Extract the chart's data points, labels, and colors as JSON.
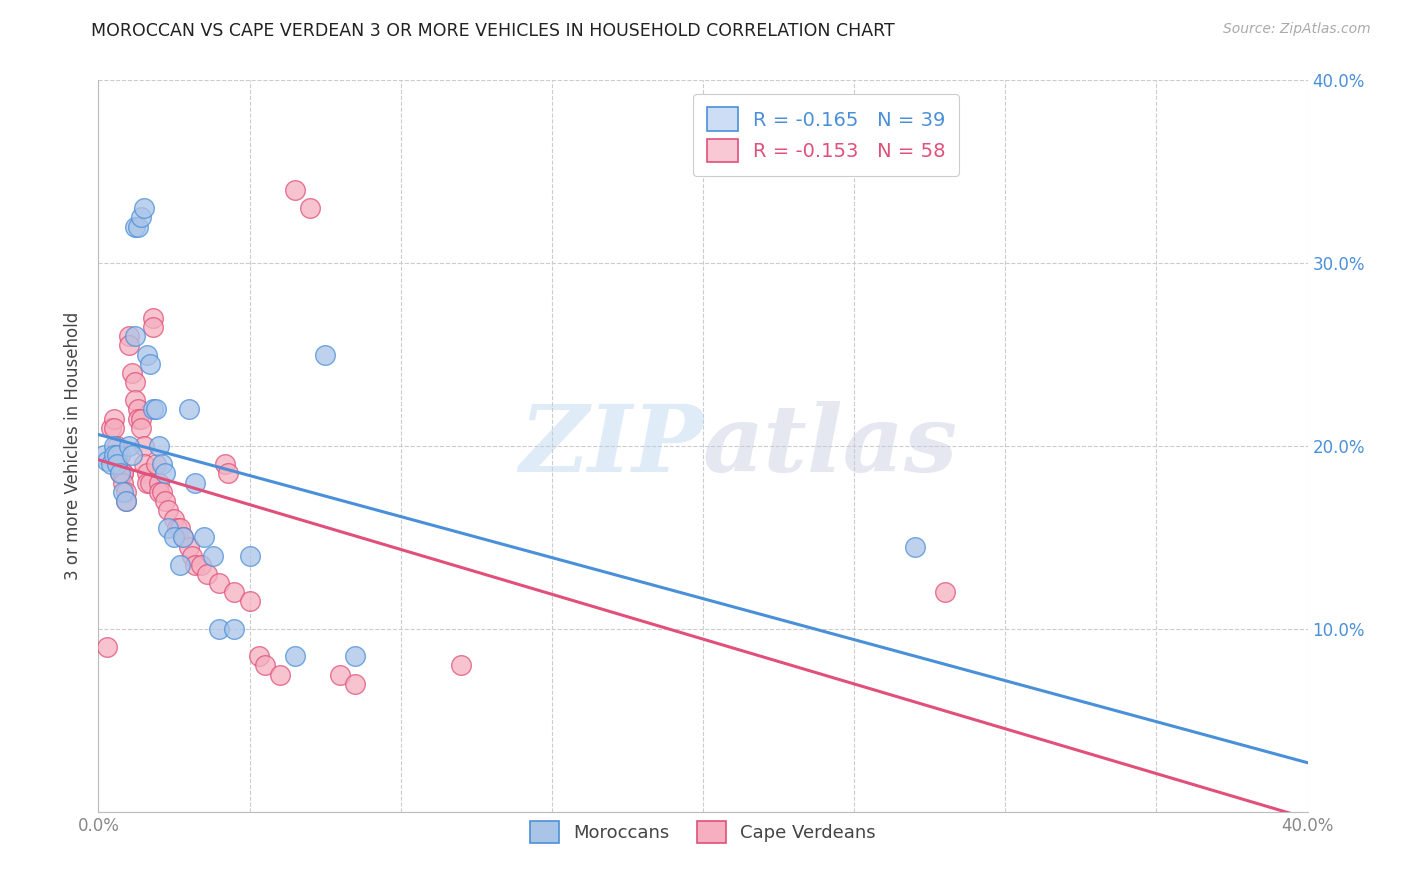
{
  "title": "MOROCCAN VS CAPE VERDEAN 3 OR MORE VEHICLES IN HOUSEHOLD CORRELATION CHART",
  "source": "Source: ZipAtlas.com",
  "ylabel": "3 or more Vehicles in Household",
  "xlim": [
    0.0,
    0.4
  ],
  "ylim": [
    0.0,
    0.4
  ],
  "moroccans_R": -0.165,
  "moroccans_N": 39,
  "cape_verdean_R": -0.153,
  "cape_verdean_N": 58,
  "blue_scatter_color": "#aac4e8",
  "pink_scatter_color": "#f5afc0",
  "blue_line_color": "#4a90d9",
  "pink_line_color": "#e0507a",
  "legend_box_color_blue": "#ccddf5",
  "legend_box_color_pink": "#f8c8d4",
  "watermark": "ZIPatlas",
  "background_color": "#ffffff",
  "grid_color": "#cccccc",
  "moroccans_x": [
    0.002,
    0.003,
    0.004,
    0.005,
    0.005,
    0.006,
    0.006,
    0.007,
    0.008,
    0.009,
    0.01,
    0.011,
    0.012,
    0.012,
    0.013,
    0.014,
    0.015,
    0.016,
    0.017,
    0.018,
    0.019,
    0.02,
    0.021,
    0.022,
    0.023,
    0.025,
    0.027,
    0.028,
    0.03,
    0.032,
    0.035,
    0.038,
    0.04,
    0.045,
    0.05,
    0.065,
    0.075,
    0.085,
    0.27
  ],
  "moroccans_y": [
    0.195,
    0.192,
    0.19,
    0.2,
    0.195,
    0.195,
    0.19,
    0.185,
    0.175,
    0.17,
    0.2,
    0.195,
    0.26,
    0.32,
    0.32,
    0.325,
    0.33,
    0.25,
    0.245,
    0.22,
    0.22,
    0.2,
    0.19,
    0.185,
    0.155,
    0.15,
    0.135,
    0.15,
    0.22,
    0.18,
    0.15,
    0.14,
    0.1,
    0.1,
    0.14,
    0.085,
    0.25,
    0.085,
    0.145
  ],
  "cape_verdeans_x": [
    0.003,
    0.004,
    0.005,
    0.005,
    0.006,
    0.006,
    0.007,
    0.007,
    0.008,
    0.008,
    0.008,
    0.009,
    0.009,
    0.01,
    0.01,
    0.011,
    0.012,
    0.012,
    0.013,
    0.013,
    0.014,
    0.014,
    0.015,
    0.015,
    0.016,
    0.016,
    0.017,
    0.018,
    0.018,
    0.019,
    0.02,
    0.02,
    0.021,
    0.022,
    0.023,
    0.025,
    0.026,
    0.027,
    0.028,
    0.03,
    0.031,
    0.032,
    0.034,
    0.036,
    0.04,
    0.042,
    0.043,
    0.045,
    0.05,
    0.053,
    0.055,
    0.06,
    0.065,
    0.07,
    0.08,
    0.085,
    0.12,
    0.28
  ],
  "cape_verdeans_y": [
    0.09,
    0.21,
    0.215,
    0.21,
    0.2,
    0.19,
    0.195,
    0.185,
    0.185,
    0.185,
    0.18,
    0.175,
    0.17,
    0.26,
    0.255,
    0.24,
    0.235,
    0.225,
    0.22,
    0.215,
    0.215,
    0.21,
    0.2,
    0.19,
    0.185,
    0.18,
    0.18,
    0.27,
    0.265,
    0.19,
    0.18,
    0.175,
    0.175,
    0.17,
    0.165,
    0.16,
    0.155,
    0.155,
    0.15,
    0.145,
    0.14,
    0.135,
    0.135,
    0.13,
    0.125,
    0.19,
    0.185,
    0.12,
    0.115,
    0.085,
    0.08,
    0.075,
    0.34,
    0.33,
    0.075,
    0.07,
    0.08,
    0.12
  ]
}
